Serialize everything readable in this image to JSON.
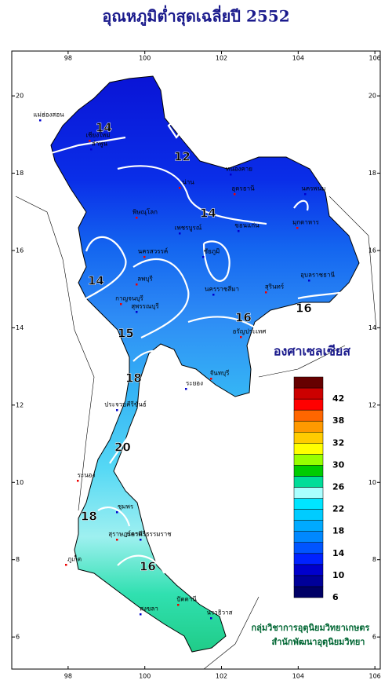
{
  "header": {
    "title": "อุณหภูมิต่ำสุดเฉลี่ยปี  2552"
  },
  "map": {
    "lon_lim": [
      96.53,
      106.14
    ],
    "lat_lim": [
      5.17,
      21.16
    ],
    "lon_ticks": [
      98,
      100,
      102,
      104,
      106
    ],
    "lat_ticks": [
      6,
      8,
      10,
      12,
      14,
      16,
      18,
      20
    ],
    "contour_labels": [
      12,
      14,
      14,
      14,
      16,
      16,
      15,
      18,
      20,
      18,
      16
    ],
    "places": [
      "แม่ฮ่องสอน",
      "เชียงใหม่",
      "ลำพูน",
      "น่าน",
      "หนองคาย",
      "อุดรธานี",
      "นครพนม",
      "มุกดาหาร",
      "ขอนแก่น",
      "พิษณุโลก",
      "เพชรบูรณ์",
      "นครสวรรค์",
      "ชัยภูมิ",
      "ลพบุรี",
      "นครราชสีมา",
      "สุรินทร์",
      "อุบลราชธานี",
      "กาญจนบุรี",
      "สุพรรณบุรี",
      "อรัญประเทศ",
      "ระยอง",
      "จันทบุรี",
      "ประจวบคีรีขันธ์",
      "ระนอง",
      "ชุมพร",
      "สุราษฎร์ธานี",
      "นครศรีธรรมราช",
      "ภูเก็ต",
      "สงขลา",
      "ปัตตานี",
      "นราธิวาส"
    ]
  },
  "legend": {
    "title": "องศาเซลเซียส",
    "labels": [
      6,
      10,
      14,
      18,
      22,
      26,
      30,
      32,
      38,
      42
    ],
    "colors": [
      "#000066",
      "#000099",
      "#0000cc",
      "#0022ff",
      "#0055ff",
      "#0088ff",
      "#00aaff",
      "#00ccff",
      "#00e5ff",
      "#aaffff",
      "#00dd99",
      "#00cc00",
      "#99ff00",
      "#ffff00",
      "#ffcc00",
      "#ff9900",
      "#ff6600",
      "#ff0000",
      "#cc0000",
      "#660000"
    ]
  },
  "credits": [
    "กลุ่มวิชาการอุตุนิยมวิทยาเกษตร",
    "สำนักพัฒนาอุตุนิยมวิทยา"
  ]
}
